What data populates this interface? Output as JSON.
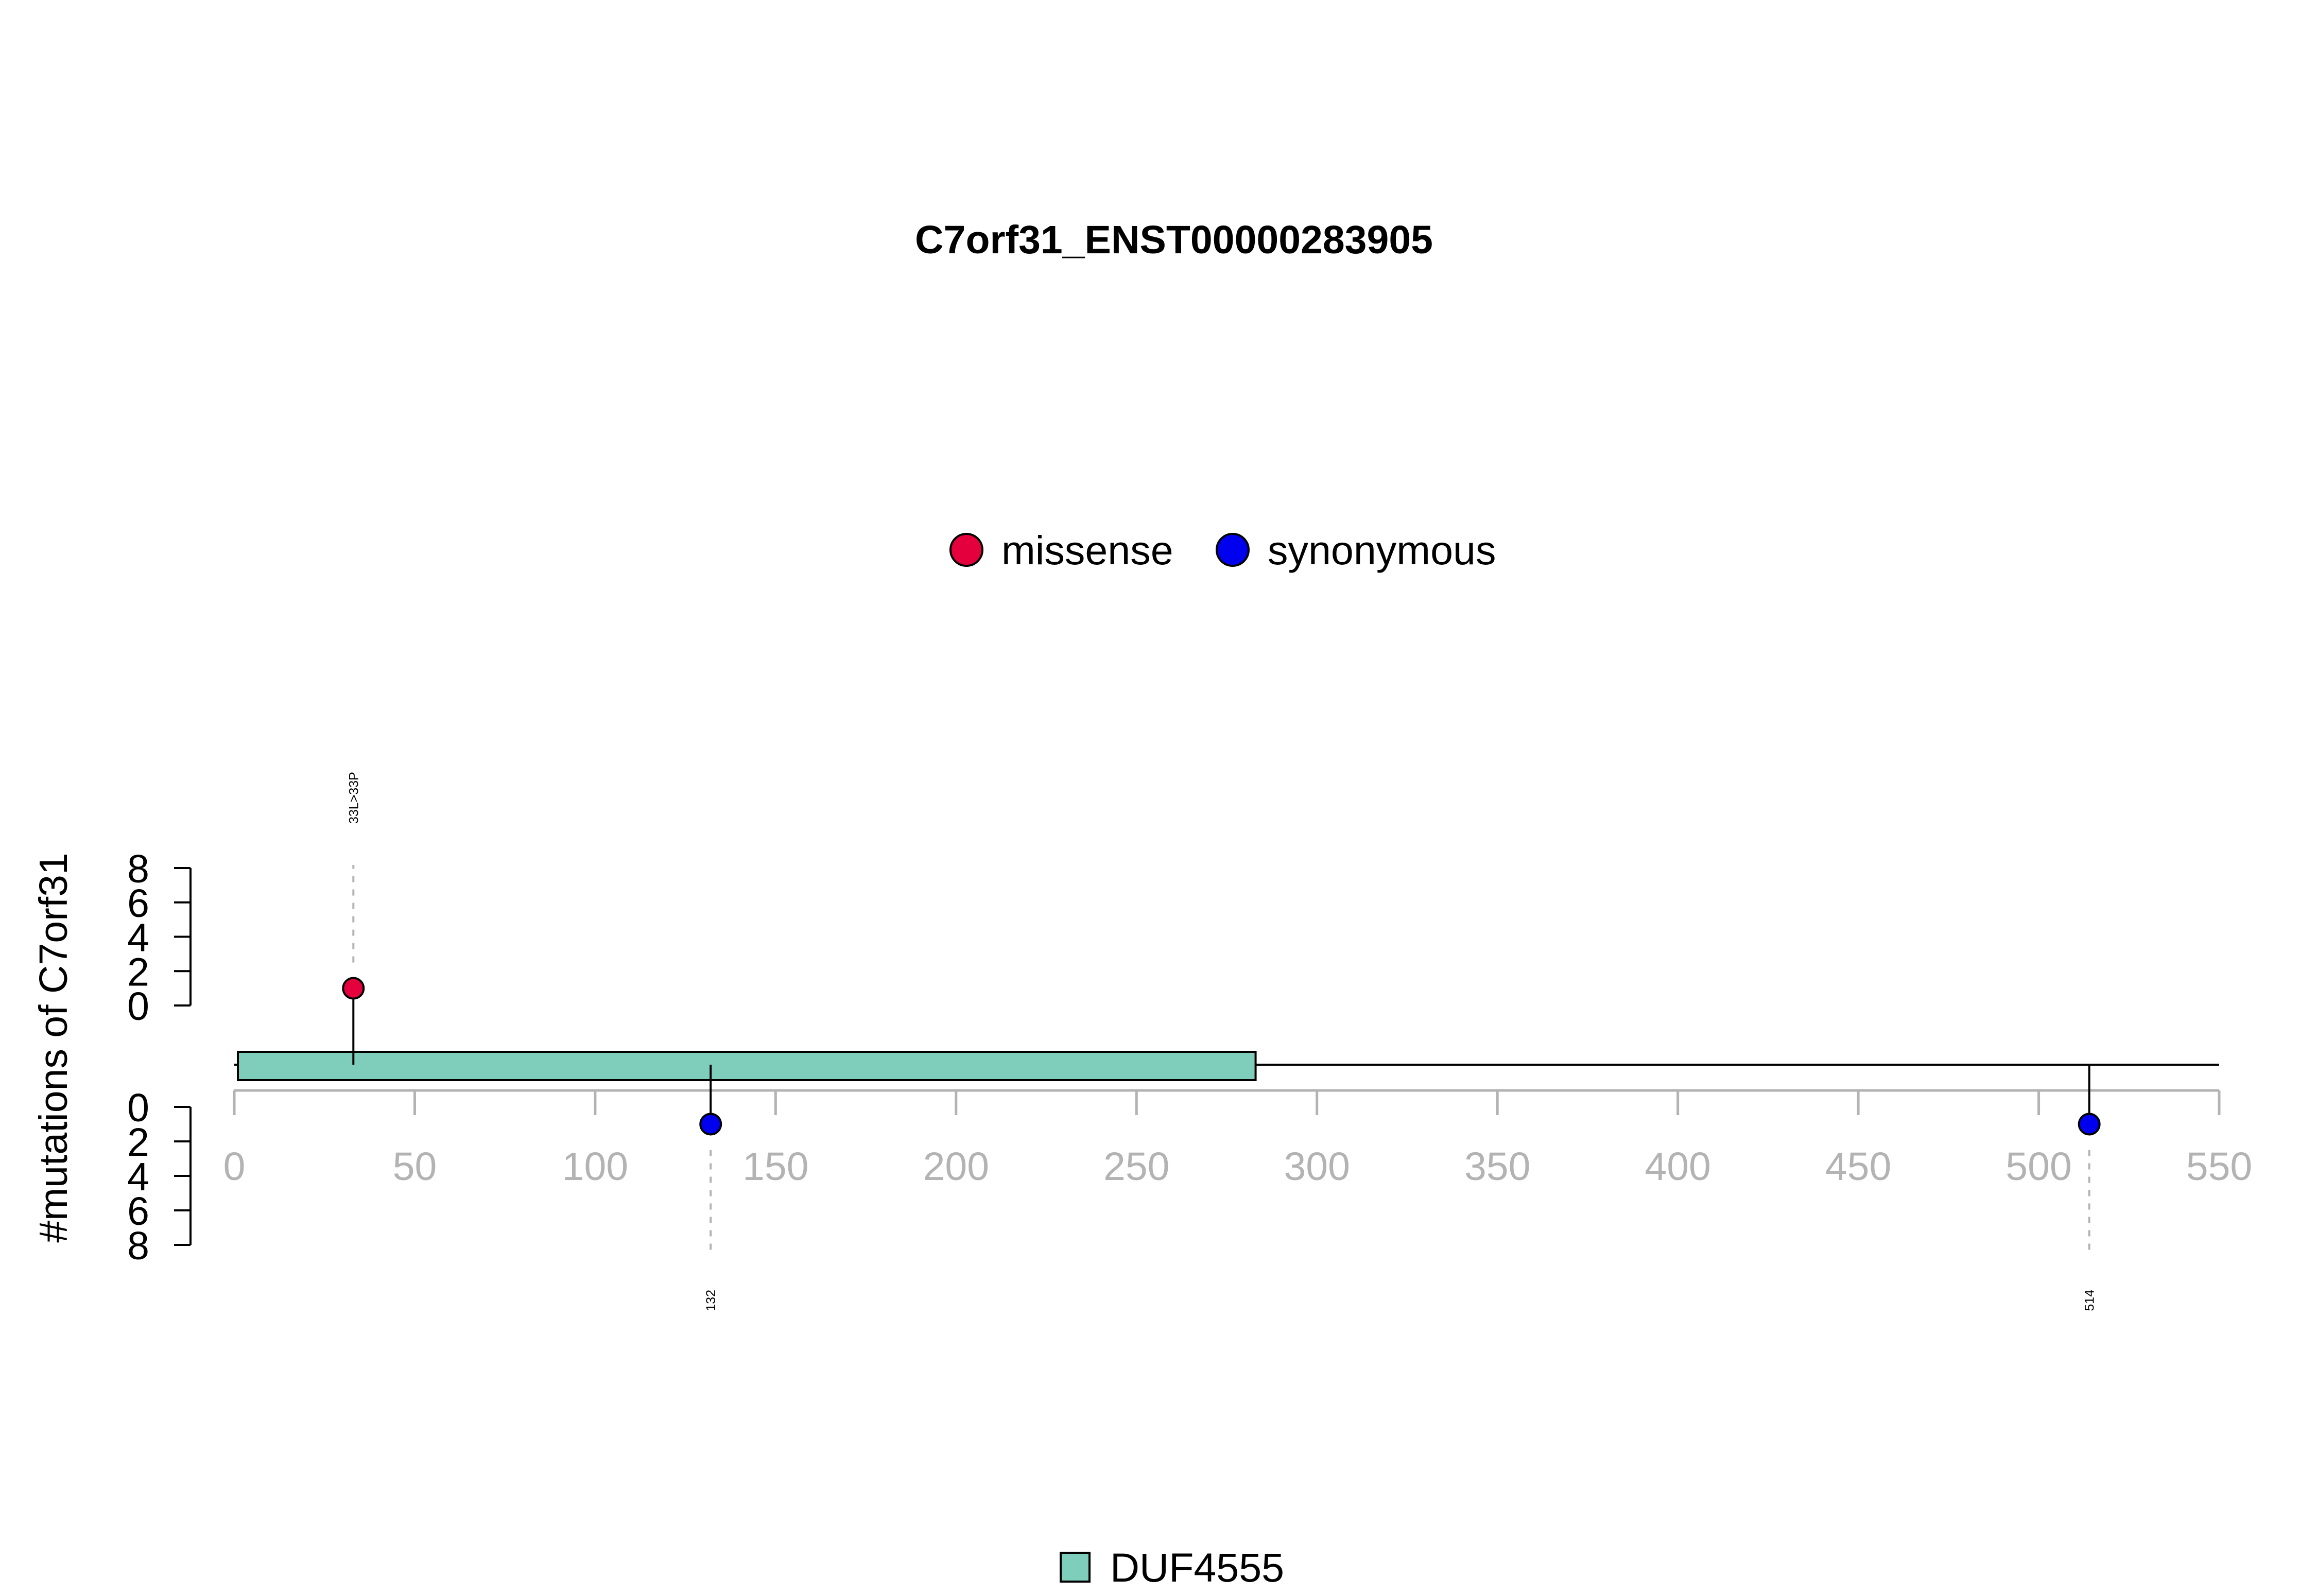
{
  "chart_data": {
    "type": "lollipop",
    "title": "C7orf31_ENST00000283905",
    "ylabel": "#mutations of C7orf31",
    "xlim": [
      0,
      550
    ],
    "x_ticks": [
      0,
      50,
      100,
      150,
      200,
      250,
      300,
      350,
      400,
      450,
      500,
      550
    ],
    "ylim": [
      0,
      8
    ],
    "y_ticks": [
      0,
      2,
      4,
      6,
      8
    ],
    "protein_length": 550,
    "legend_mutations": [
      {
        "name": "missense",
        "color": "#e3003c"
      },
      {
        "name": "synonymous",
        "color": "#0000ee"
      }
    ],
    "domains": [
      {
        "name": "DUF4555",
        "start": 1,
        "end": 283,
        "color": "#7fcdbb"
      }
    ],
    "mutations": [
      {
        "position": 33,
        "count": 1,
        "type": "missense",
        "side": "top",
        "label": "33L>33P",
        "color": "#e3003c"
      },
      {
        "position": 132,
        "count": 1,
        "type": "synonymous",
        "side": "bottom",
        "label": "132",
        "color": "#0000ee"
      },
      {
        "position": 514,
        "count": 1,
        "type": "synonymous",
        "side": "bottom",
        "label": "514",
        "color": "#0000ee"
      }
    ]
  }
}
